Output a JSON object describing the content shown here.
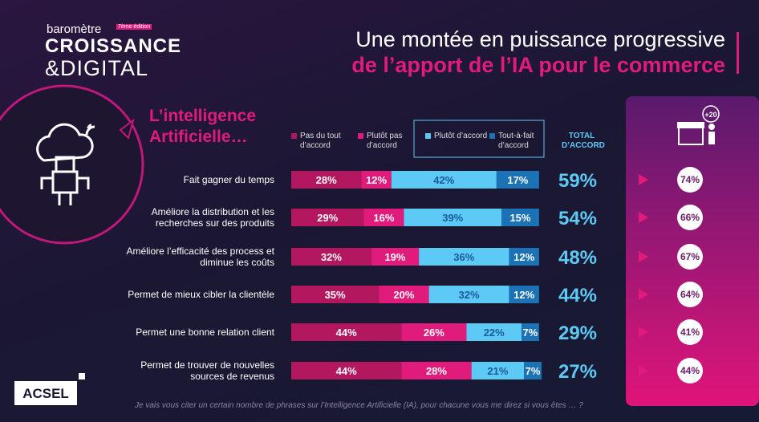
{
  "brand": {
    "line1": "baromètre",
    "edition": "7ème édition",
    "line2": "CROISSANCE",
    "line3": "&DIGITAL"
  },
  "title": {
    "line1": "Une montée en puissance progressive",
    "line2": "de l’apport de l’IA pour le commerce"
  },
  "section": "L’intelligence Artificielle…",
  "chart_data": {
    "type": "stacked-bar",
    "categories": [
      "Fait gagner du temps",
      "Améliore la distribution et les recherches sur des produits",
      "Améliore l’efficacité des process et diminue les coûts",
      "Permet de mieux cibler la clientèle",
      "Permet une bonne relation client",
      "Permet de trouver de nouvelles sources de revenus"
    ],
    "xlim": [
      0,
      100
    ],
    "series": [
      {
        "name": "Pas du tout d’accord",
        "color": "#b3175f",
        "values": [
          28,
          29,
          32,
          35,
          44,
          44
        ],
        "value_labels": [
          "28%",
          "29%",
          "32%",
          "35%",
          "44%",
          "44%"
        ]
      },
      {
        "name": "Plutôt pas d’accord",
        "color": "#e01b7c",
        "values": [
          12,
          16,
          19,
          20,
          26,
          28
        ],
        "value_labels": [
          "12%",
          "16%",
          "19%",
          "20%",
          "26%",
          "28%"
        ]
      },
      {
        "name": "Plutôt d’accord",
        "color": "#5ccaf5",
        "values": [
          42,
          39,
          36,
          32,
          22,
          21
        ],
        "value_labels": [
          "42%",
          "39%",
          "36%",
          "32%",
          "22%",
          "21%"
        ]
      },
      {
        "name": "Tout-à-fait d’accord",
        "color": "#1b73b6",
        "values": [
          17,
          15,
          12,
          12,
          7,
          7
        ],
        "value_labels": [
          "17%",
          "15%",
          "12%",
          "12%",
          "7%",
          "7%"
        ]
      }
    ],
    "totals": {
      "name": "TOTAL D’ACCORD",
      "color": "#5ccaf5",
      "values": [
        59,
        54,
        48,
        44,
        29,
        27
      ],
      "value_labels": [
        "59%",
        "54%",
        "48%",
        "44%",
        "29%",
        "27%"
      ]
    },
    "comparison": {
      "badge": "+20",
      "values": [
        74,
        66,
        67,
        64,
        41,
        44
      ],
      "value_labels": [
        "74%",
        "66%",
        "67%",
        "64%",
        "41%",
        "44%"
      ]
    }
  },
  "footnote": "Je vais vous citer un certain nombre de phrases sur l’Intelligence Artificielle (IA), pour chacune vous me direz si vous êtes … ?",
  "logo": "ACSEL"
}
